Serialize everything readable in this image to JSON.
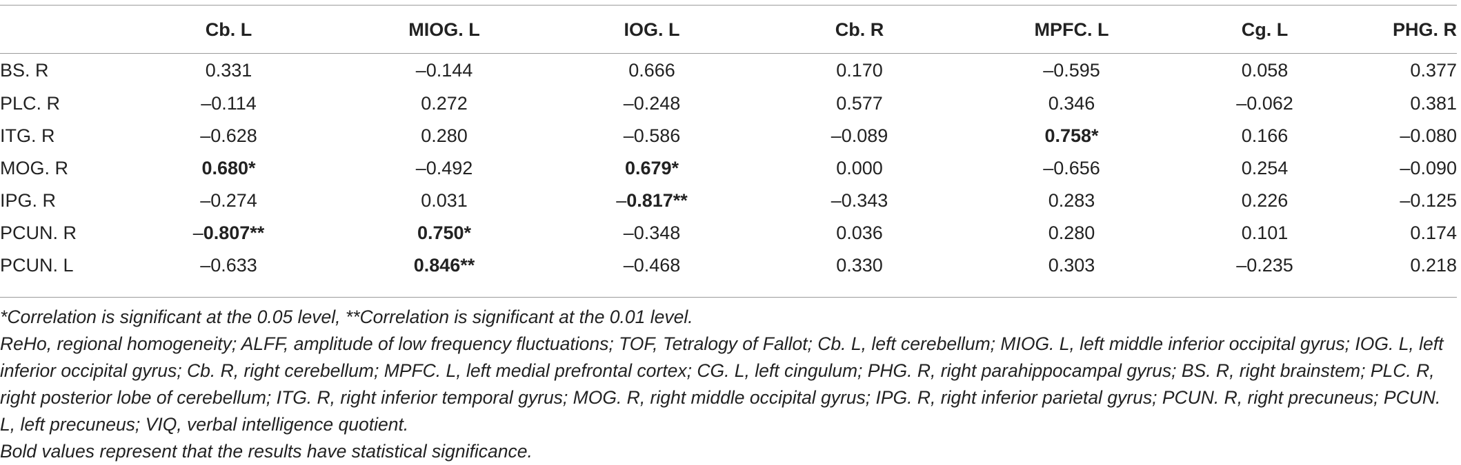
{
  "columns": [
    "",
    "Cb. L",
    "MIOG. L",
    "IOG. L",
    "Cb. R",
    "MPFC. L",
    "Cg. L",
    "PHG. R"
  ],
  "rows": [
    {
      "label": "BS. R",
      "cells": [
        {
          "sign": "",
          "num": "0.331",
          "bold": false
        },
        {
          "sign": "–",
          "num": "0.144",
          "bold": false
        },
        {
          "sign": "",
          "num": "0.666",
          "bold": false
        },
        {
          "sign": "",
          "num": "0.170",
          "bold": false
        },
        {
          "sign": "–",
          "num": "0.595",
          "bold": false
        },
        {
          "sign": "",
          "num": "0.058",
          "bold": false
        },
        {
          "sign": "",
          "num": "0.377",
          "bold": false
        }
      ]
    },
    {
      "label": "PLC. R",
      "cells": [
        {
          "sign": "–",
          "num": "0.114",
          "bold": false
        },
        {
          "sign": "",
          "num": "0.272",
          "bold": false
        },
        {
          "sign": "–",
          "num": "0.248",
          "bold": false
        },
        {
          "sign": "",
          "num": "0.577",
          "bold": false
        },
        {
          "sign": "",
          "num": "0.346",
          "bold": false
        },
        {
          "sign": "–",
          "num": "0.062",
          "bold": false
        },
        {
          "sign": "",
          "num": "0.381",
          "bold": false
        }
      ]
    },
    {
      "label": "ITG. R",
      "cells": [
        {
          "sign": "–",
          "num": "0.628",
          "bold": false
        },
        {
          "sign": "",
          "num": "0.280",
          "bold": false
        },
        {
          "sign": "–",
          "num": "0.586",
          "bold": false
        },
        {
          "sign": "–",
          "num": "0.089",
          "bold": false
        },
        {
          "sign": "",
          "num": "0.758*",
          "bold": true
        },
        {
          "sign": "",
          "num": "0.166",
          "bold": false
        },
        {
          "sign": "–",
          "num": "0.080",
          "bold": false
        }
      ]
    },
    {
      "label": "MOG. R",
      "cells": [
        {
          "sign": "",
          "num": "0.680*",
          "bold": true
        },
        {
          "sign": "–",
          "num": "0.492",
          "bold": false
        },
        {
          "sign": "",
          "num": "0.679*",
          "bold": true
        },
        {
          "sign": "",
          "num": "0.000",
          "bold": false
        },
        {
          "sign": "–",
          "num": "0.656",
          "bold": false
        },
        {
          "sign": "",
          "num": "0.254",
          "bold": false
        },
        {
          "sign": "–",
          "num": "0.090",
          "bold": false
        }
      ]
    },
    {
      "label": "IPG. R",
      "cells": [
        {
          "sign": "–",
          "num": "0.274",
          "bold": false
        },
        {
          "sign": "",
          "num": "0.031",
          "bold": false
        },
        {
          "sign": "–",
          "num": "0.817**",
          "bold": true
        },
        {
          "sign": "–",
          "num": "0.343",
          "bold": false
        },
        {
          "sign": "",
          "num": "0.283",
          "bold": false
        },
        {
          "sign": "",
          "num": "0.226",
          "bold": false
        },
        {
          "sign": "–",
          "num": "0.125",
          "bold": false
        }
      ]
    },
    {
      "label": "PCUN. R",
      "cells": [
        {
          "sign": "–",
          "num": "0.807**",
          "bold": true
        },
        {
          "sign": "",
          "num": "0.750*",
          "bold": true
        },
        {
          "sign": "–",
          "num": "0.348",
          "bold": false
        },
        {
          "sign": "",
          "num": "0.036",
          "bold": false
        },
        {
          "sign": "",
          "num": "0.280",
          "bold": false
        },
        {
          "sign": "",
          "num": "0.101",
          "bold": false
        },
        {
          "sign": "",
          "num": "0.174",
          "bold": false
        }
      ]
    },
    {
      "label": "PCUN. L",
      "cells": [
        {
          "sign": "–",
          "num": "0.633",
          "bold": false
        },
        {
          "sign": "",
          "num": "0.846**",
          "bold": true
        },
        {
          "sign": "–",
          "num": "0.468",
          "bold": false
        },
        {
          "sign": "",
          "num": "0.330",
          "bold": false
        },
        {
          "sign": "",
          "num": "0.303",
          "bold": false
        },
        {
          "sign": "–",
          "num": "0.235",
          "bold": false
        },
        {
          "sign": "",
          "num": "0.218",
          "bold": false
        }
      ]
    }
  ],
  "notes": {
    "significance": "*Correlation is significant at the 0.05 level, **Correlation is significant at the 0.01 level.",
    "abbreviations": "ReHo, regional homogeneity; ALFF, amplitude of low frequency fluctuations; TOF, Tetralogy of Fallot; Cb. L, left cerebellum; MIOG. L, left middle inferior occipital gyrus; IOG. L, left inferior occipital gyrus; Cb. R, right cerebellum; MPFC. L, left medial prefrontal cortex; CG. L, left cingulum; PHG. R, right parahippocampal gyrus; BS. R, right brainstem; PLC. R, right posterior lobe of cerebellum; ITG. R, right inferior temporal gyrus; MOG. R, right middle occipital gyrus; IPG. R, right inferior parietal gyrus; PCUN. R, right precuneus; PCUN. L, left precuneus; VIQ, verbal intelligence quotient.",
    "bold": "Bold values represent that the results have statistical significance."
  }
}
